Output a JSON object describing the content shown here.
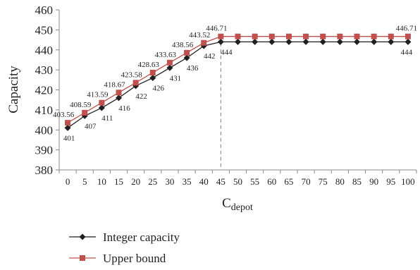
{
  "chart_data": {
    "type": "line",
    "ylabel": "Capacity",
    "xlabel": "C",
    "xlabel_sub": "depot",
    "ylim": [
      380,
      460
    ],
    "yticks": [
      380,
      390,
      400,
      410,
      420,
      430,
      440,
      450,
      460
    ],
    "categories": [
      "0",
      "5",
      "10",
      "15",
      "20",
      "25",
      "30",
      "35",
      "40",
      "45",
      "50",
      "55",
      "60",
      "65",
      "70",
      "75",
      "80",
      "85",
      "90",
      "95",
      "100"
    ],
    "reference_line": {
      "x": "45",
      "style": "dashed"
    },
    "legend_position": "bottom",
    "grid": false,
    "series": [
      {
        "name": "Integer capacity",
        "color": "#231f20",
        "marker": "diamond",
        "values": [
          401,
          407,
          411,
          416,
          422,
          426,
          431,
          436,
          442,
          444,
          444,
          444,
          444,
          444,
          444,
          444,
          444,
          444,
          444,
          444,
          444
        ],
        "labels": [
          "401",
          "407",
          "411",
          "416",
          "422",
          "426",
          "431",
          "436",
          "442",
          "444",
          "",
          "",
          "",
          "",
          "",
          "",
          "",
          "",
          "",
          "",
          "444"
        ]
      },
      {
        "name": "Upper bound",
        "color": "#c0504d",
        "marker": "square",
        "values": [
          403.56,
          408.59,
          413.59,
          418.67,
          423.58,
          428.63,
          433.63,
          438.56,
          443.52,
          446.71,
          446.71,
          446.71,
          446.71,
          446.71,
          446.71,
          446.71,
          446.71,
          446.71,
          446.71,
          446.71,
          446.71
        ],
        "labels": [
          "403.56",
          "408.59",
          "413.59",
          "418.67",
          "423.58",
          "428.63",
          "433.63",
          "438.56",
          "443.52",
          "446.71",
          "",
          "",
          "",
          "",
          "",
          "",
          "",
          "",
          "",
          "",
          "446.71"
        ]
      }
    ]
  }
}
